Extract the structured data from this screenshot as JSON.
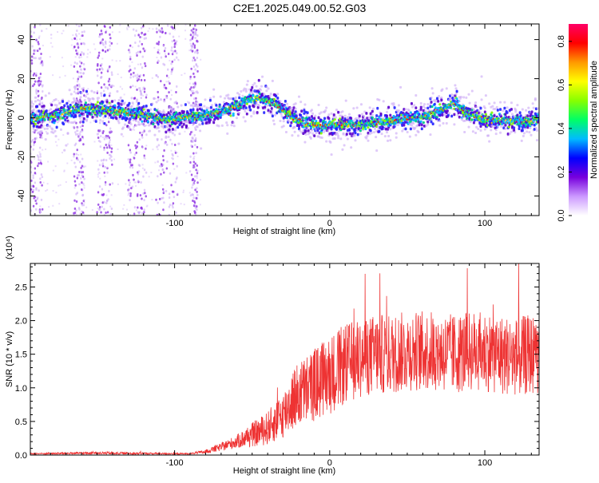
{
  "figure": {
    "title": "C2E1.2025.049.00.52.G03"
  },
  "colors": {
    "snr_line": "#ee3333",
    "ridge_core": "#ff3300",
    "ridge_mid": "#00cc88",
    "ridge_outer": "#2222ff",
    "scatter_purple": "#8a2be2",
    "background": "#ffffff"
  },
  "chart_data": [
    {
      "type": "heatmap",
      "xlabel": "Height of straight line (km)",
      "ylabel": "Frequency (Hz)",
      "xlim": [
        -193,
        135
      ],
      "ylim": [
        -50,
        48
      ],
      "xticks": [
        -100,
        0,
        100
      ],
      "xtick_labels": [
        "-100",
        "0",
        "100"
      ],
      "yticks": [
        -40,
        -20,
        0,
        20,
        40
      ],
      "ytick_labels": [
        "-40",
        "-20",
        "0",
        "20",
        "40"
      ],
      "grid": false,
      "ridge": {
        "x": [
          -190,
          -175,
          -165,
          -155,
          -145,
          -135,
          -125,
          -115,
          -105,
          -95,
          -85,
          -75,
          -65,
          -55,
          -45,
          -35,
          -25,
          -15,
          -5,
          5,
          15,
          25,
          35,
          45,
          55,
          65,
          75,
          80,
          85,
          95,
          105,
          115,
          125,
          133
        ],
        "y": [
          0,
          1,
          4,
          5,
          4,
          3,
          2,
          0,
          -1,
          0,
          1,
          2,
          4,
          8,
          10,
          7,
          1,
          -3,
          -4,
          -3,
          -4,
          -3,
          -2,
          -1,
          0,
          2,
          5,
          8,
          4,
          0,
          -1,
          -2,
          -2,
          -1
        ]
      },
      "colorbar": {
        "label": "Normalized spectral amplitude",
        "range": [
          0,
          0.88
        ],
        "ticks": [
          0.0,
          0.2,
          0.4,
          0.6,
          0.8
        ],
        "tick_labels": [
          "0.0",
          "0.2",
          "0.4",
          "0.6",
          "0.8"
        ],
        "colors": [
          "#ffffff",
          "#cc99ff",
          "#7700dd",
          "#0000ff",
          "#00bbff",
          "#00ff66",
          "#88ff00",
          "#ffff00",
          "#ff9900",
          "#ff0000",
          "#ff0066"
        ]
      }
    },
    {
      "type": "line",
      "xlabel": "Height of straight line (km)",
      "ylabel": "SNR (10 * v/v)",
      "scale_note": "(x10⁴)",
      "xlim": [
        -193,
        135
      ],
      "ylim": [
        0,
        2.85
      ],
      "xticks": [
        -100,
        0,
        100
      ],
      "xtick_labels": [
        "-100",
        "0",
        "100"
      ],
      "yticks": [
        0.0,
        0.5,
        1.0,
        1.5,
        2.0,
        2.5
      ],
      "ytick_labels": [
        "0.0",
        "0.5",
        "1.0",
        "1.5",
        "2.0",
        "2.5"
      ],
      "grid": false,
      "envelope": {
        "x": [
          -193,
          -150,
          -100,
          -90,
          -80,
          -70,
          -60,
          -50,
          -40,
          -30,
          -25,
          -20,
          -10,
          0,
          10,
          20,
          30,
          40,
          50,
          60,
          70,
          80,
          90,
          100,
          110,
          120,
          130,
          135
        ],
        "mean": [
          0.02,
          0.03,
          0.02,
          0.02,
          0.05,
          0.12,
          0.2,
          0.3,
          0.4,
          0.6,
          0.8,
          0.9,
          1.05,
          1.2,
          1.35,
          1.45,
          1.5,
          1.5,
          1.55,
          1.55,
          1.55,
          1.5,
          1.55,
          1.55,
          1.5,
          1.45,
          1.5,
          1.5
        ],
        "spread": [
          0.01,
          0.02,
          0.01,
          0.01,
          0.03,
          0.06,
          0.1,
          0.18,
          0.25,
          0.35,
          0.45,
          0.5,
          0.55,
          0.6,
          0.6,
          0.6,
          0.6,
          0.6,
          0.6,
          0.6,
          0.6,
          0.6,
          0.6,
          0.6,
          0.6,
          0.6,
          0.6,
          0.6
        ]
      }
    }
  ]
}
